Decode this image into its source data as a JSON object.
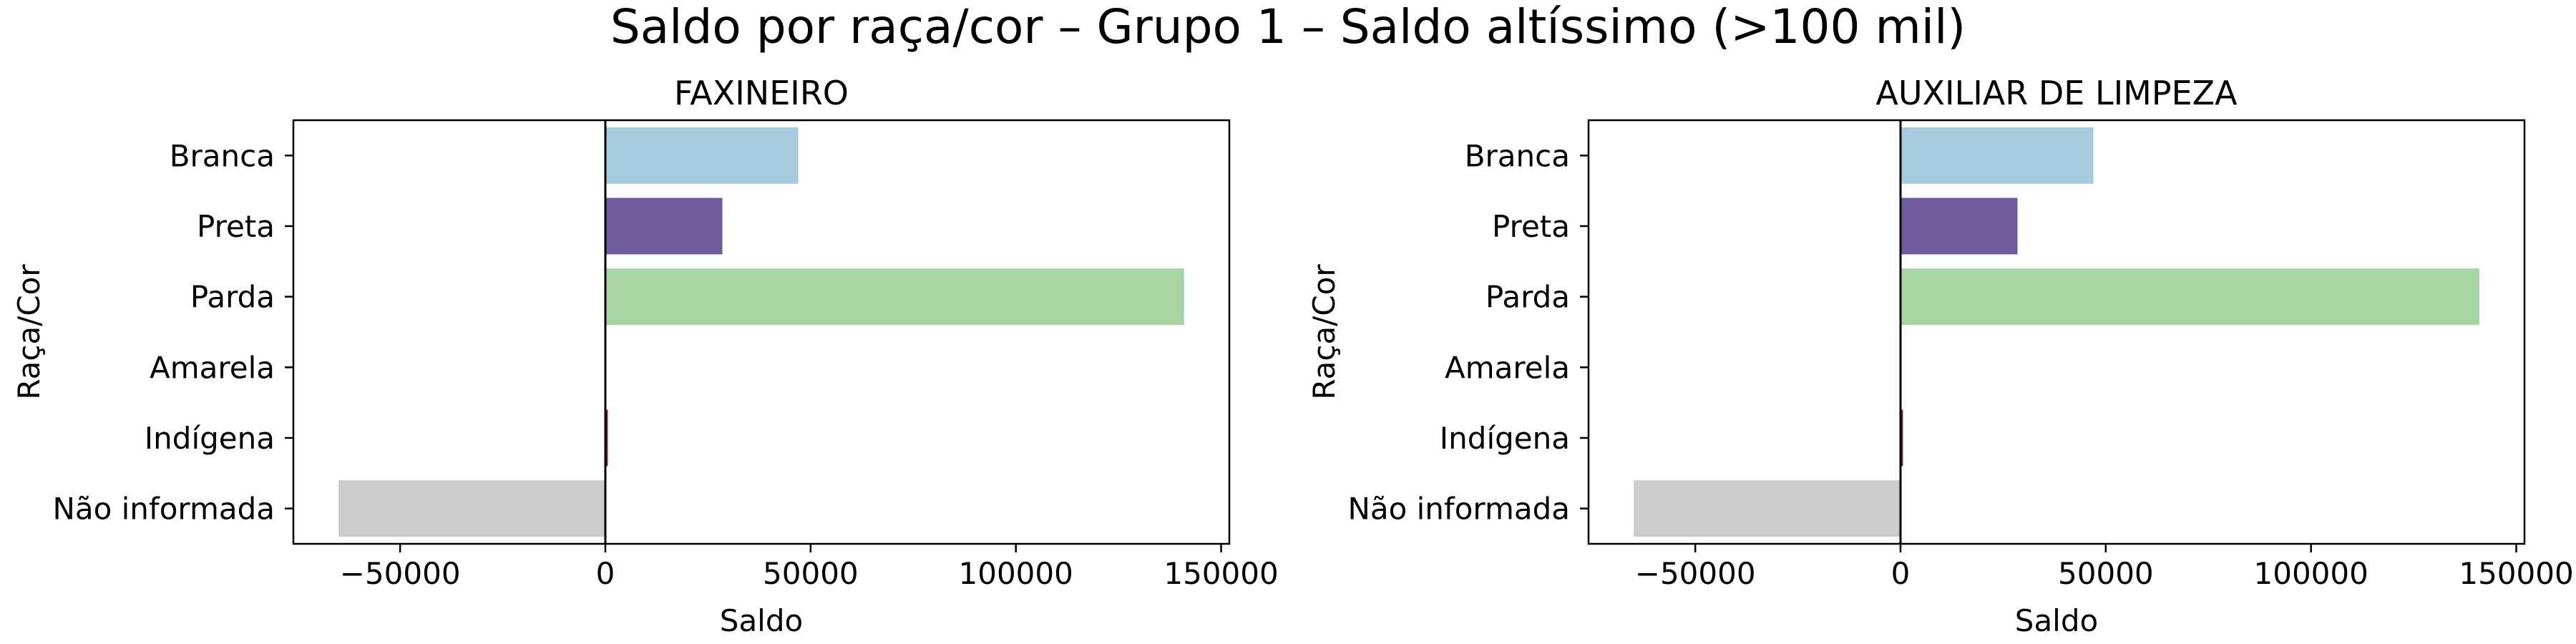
{
  "figure": {
    "title": "Saldo por raça/cor – Grupo 1 – Saldo altíssimo (>100 mil)"
  },
  "chart_data": [
    {
      "type": "bar",
      "orientation": "horizontal",
      "title": "FAXINEIRO",
      "xlabel": "Saldo",
      "ylabel": "Raça/Cor",
      "categories": [
        "Branca",
        "Preta",
        "Parda",
        "Amarela",
        "Indígena",
        "Não informada"
      ],
      "values": [
        47000,
        28500,
        141000,
        200,
        600,
        -65000
      ],
      "colors": [
        "#a6cbde",
        "#6f5a9e",
        "#a6d4a3",
        "#f2b27a",
        "#7d2512",
        "#cccccc"
      ],
      "xlim": [
        -76000,
        152000
      ],
      "xticks": [
        -50000,
        0,
        50000,
        100000,
        150000
      ],
      "xtick_labels": [
        "−50000",
        "0",
        "50000",
        "100000",
        "150000"
      ],
      "zero_line": true,
      "grid": false
    },
    {
      "type": "bar",
      "orientation": "horizontal",
      "title": "AUXILIAR DE LIMPEZA",
      "xlabel": "Saldo",
      "ylabel": "Raça/Cor",
      "categories": [
        "Branca",
        "Preta",
        "Parda",
        "Amarela",
        "Indígena",
        "Não informada"
      ],
      "values": [
        47000,
        28500,
        141000,
        200,
        600,
        -65000
      ],
      "colors": [
        "#a6cbde",
        "#6f5a9e",
        "#a6d4a3",
        "#f2b27a",
        "#7d2512",
        "#cccccc"
      ],
      "xlim": [
        -76000,
        152000
      ],
      "xticks": [
        -50000,
        0,
        50000,
        100000,
        150000
      ],
      "xtick_labels": [
        "−50000",
        "0",
        "50000",
        "100000",
        "150000"
      ],
      "zero_line": true,
      "grid": false
    }
  ]
}
